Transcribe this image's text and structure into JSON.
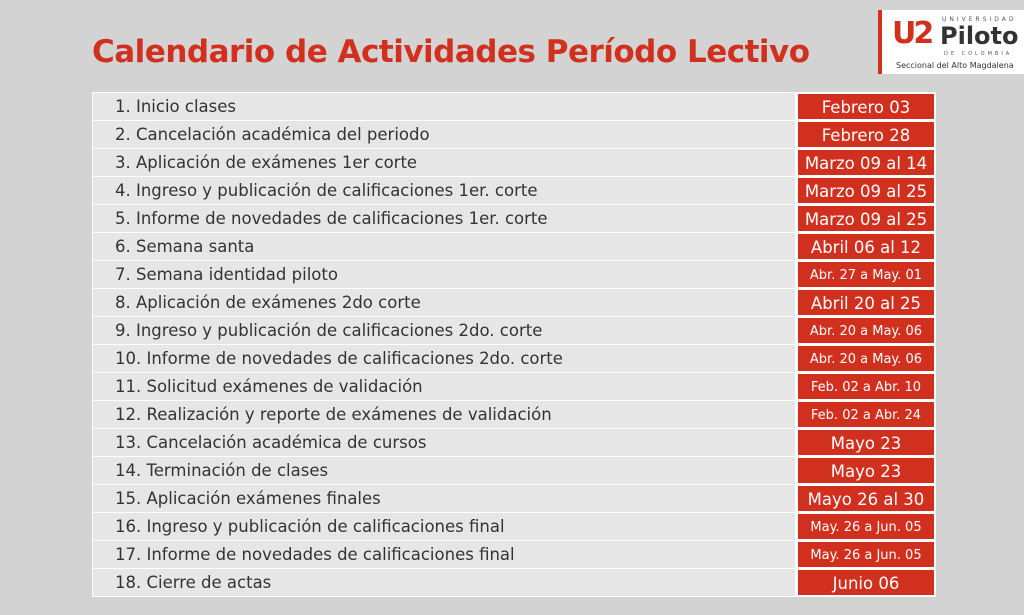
{
  "title": "Calendario de Actividades Período Lectivo",
  "logo": {
    "mark": "U2",
    "top": "UNIVERSIDAD",
    "name": "Piloto",
    "sub": "DE COLOMBIA",
    "campus": "Seccional del Alto Magdalena"
  },
  "colors": {
    "accent": "#d2301e",
    "background": "#d3d3d3",
    "row": "#e6e6e6"
  },
  "rows": [
    {
      "activity": "1. Inicio clases",
      "date": "Febrero 03"
    },
    {
      "activity": "2. Cancelación académica del periodo",
      "date": "Febrero 28"
    },
    {
      "activity": "3. Aplicación de exámenes 1er corte",
      "date": "Marzo 09 al 14"
    },
    {
      "activity": "4. Ingreso y publicación de calificaciones 1er. corte",
      "date": "Marzo 09 al 25"
    },
    {
      "activity": "5. Informe de novedades de calificaciones 1er. corte",
      "date": "Marzo 09 al 25"
    },
    {
      "activity": "6. Semana santa",
      "date": "Abril 06 al 12"
    },
    {
      "activity": "7. Semana identidad piloto",
      "date": "Abr. 27 a May. 01"
    },
    {
      "activity": "8. Aplicación de exámenes 2do corte",
      "date": "Abril 20 al 25"
    },
    {
      "activity": "9. Ingreso y publicación de calificaciones 2do. corte",
      "date": "Abr. 20 a May. 06"
    },
    {
      "activity": "10. Informe de novedades de calificaciones 2do. corte",
      "date": "Abr. 20 a May. 06"
    },
    {
      "activity": "11. Solicitud exámenes de validación",
      "date": "Feb. 02 a Abr. 10"
    },
    {
      "activity": "12. Realización y reporte de exámenes de validación",
      "date": "Feb. 02 a Abr. 24"
    },
    {
      "activity": "13. Cancelación académica de cursos",
      "date": "Mayo 23"
    },
    {
      "activity": "14. Terminación de clases",
      "date": "Mayo 23"
    },
    {
      "activity": "15. Aplicación exámenes finales",
      "date": "Mayo 26 al 30"
    },
    {
      "activity": "16. Ingreso y publicación de calificaciones final",
      "date": "May. 26 a Jun. 05"
    },
    {
      "activity": "17. Informe de novedades de calificaciones final",
      "date": "May. 26 a Jun. 05"
    },
    {
      "activity": "18. Cierre de actas",
      "date": "Junio 06"
    }
  ]
}
